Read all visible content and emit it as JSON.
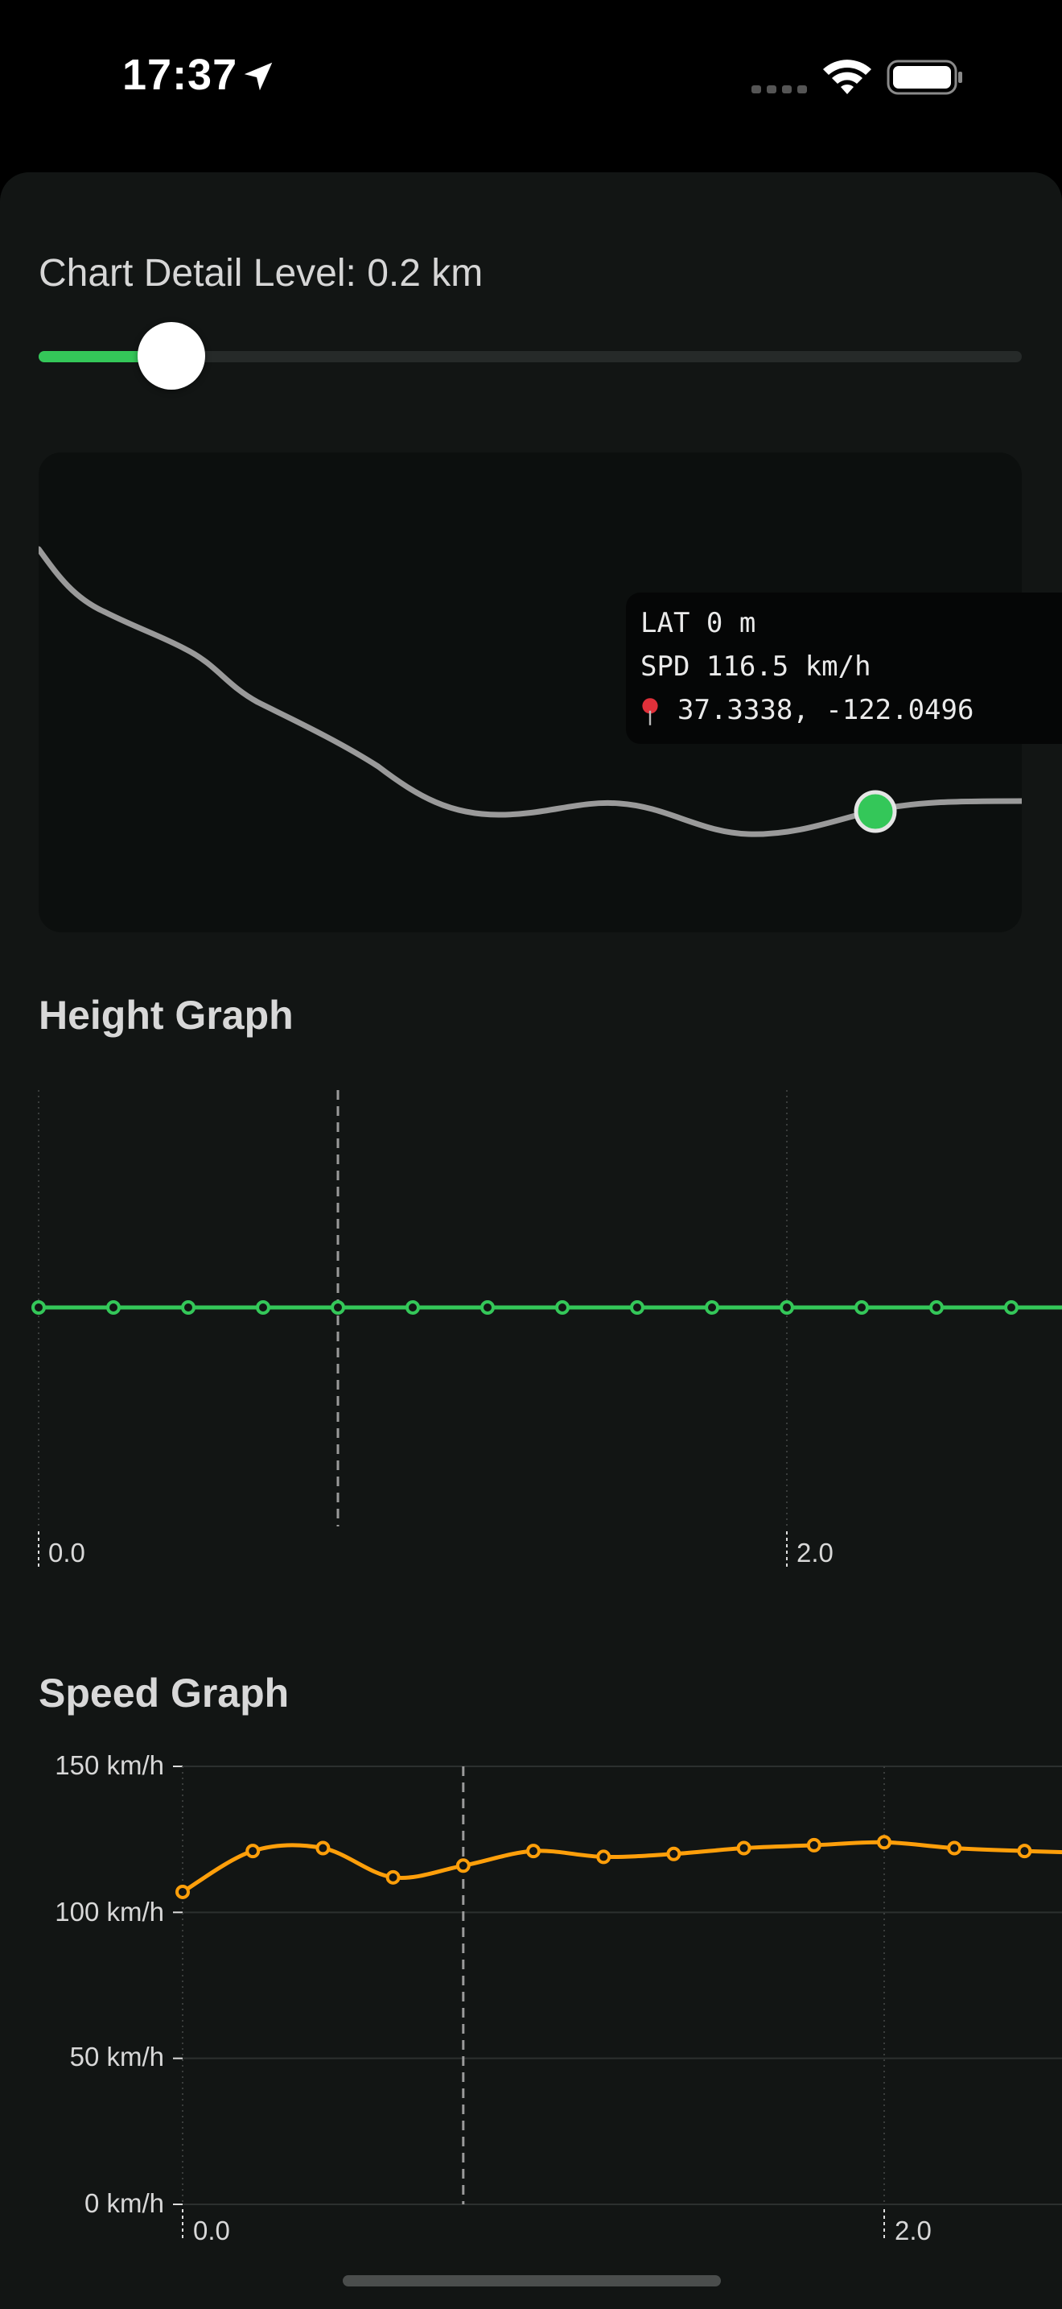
{
  "status": {
    "time": "17:37",
    "icons": [
      "location-arrow-icon",
      "cellular-signal-icon",
      "wifi-icon",
      "battery-icon"
    ]
  },
  "slider": {
    "label": "Chart Detail Level: 0.2 km",
    "fraction": 0.135,
    "accent": "#34c759"
  },
  "map": {
    "tooltip": {
      "lat": "LAT 0 m",
      "spd": "SPD 116.5 km/h",
      "coords": "37.3338, -122.0496",
      "pin_icon": "map-pin-icon"
    },
    "marker_color": "#34c759",
    "route_color": "#9a9a9a"
  },
  "height_graph": {
    "title": "Height Graph",
    "x_ticks": [
      "0.0",
      "2.0"
    ],
    "color": "#34c759"
  },
  "speed_graph": {
    "title": "Speed Graph",
    "y_ticks": [
      "150 km/h",
      "100 km/h",
      "50 km/h",
      "0 km/h"
    ],
    "x_ticks": [
      "0.0",
      "2.0"
    ],
    "color": "#ff9f0a"
  },
  "chart_data": [
    {
      "type": "line",
      "title": "Height Graph",
      "x": [
        0.0,
        0.2,
        0.4,
        0.6,
        0.8,
        1.0,
        1.2,
        1.4,
        1.6,
        1.8,
        2.0,
        2.2,
        2.4,
        2.6
      ],
      "series": [
        {
          "values": [
            0,
            0,
            0,
            0,
            0,
            0,
            0,
            0,
            0,
            0,
            0,
            0,
            0,
            0
          ]
        }
      ],
      "x_tick_labels": [
        "0.0",
        "2.0"
      ],
      "selected_x": 0.8,
      "grid": true
    },
    {
      "type": "line",
      "title": "Speed Graph",
      "x": [
        0.0,
        0.2,
        0.4,
        0.6,
        0.8,
        1.0,
        1.2,
        1.4,
        1.6,
        1.8,
        2.0,
        2.2,
        2.4
      ],
      "series": [
        {
          "values": [
            107,
            121,
            122,
            112,
            116,
            121,
            119,
            120,
            122,
            123,
            124,
            122,
            121
          ]
        }
      ],
      "x_tick_labels": [
        "0.0",
        "2.0"
      ],
      "y_tick_labels": [
        "0 km/h",
        "50 km/h",
        "100 km/h",
        "150 km/h"
      ],
      "ylim": [
        0,
        150
      ],
      "selected_x": 0.8,
      "grid": true
    }
  ]
}
